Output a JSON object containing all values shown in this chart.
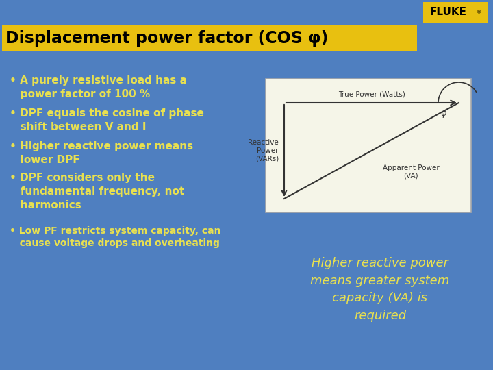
{
  "bg_color": "#4f7fc0",
  "title_text": "Displacement power factor (COS φ)",
  "title_bg": "#e8c010",
  "title_color": "#000000",
  "title_fontsize": 17,
  "fluke_bg": "#e8c010",
  "fluke_text": "FLUKE",
  "fluke_color": "#000000",
  "bullet_color": "#e8e050",
  "bullets": [
    "• A purely resistive load has a\n   power factor of 100 %",
    "• DPF equals the cosine of phase\n   shift between V and I",
    "• Higher reactive power means\n   lower DPF",
    "• DPF considers only the\n   fundamental frequency, not\n   harmonics",
    "• Low PF restricts system capacity, can\n   cause voltage drops and overheating"
  ],
  "bullet_fontsizes": [
    11,
    11,
    11,
    11,
    10
  ],
  "italic_text": "Higher reactive power\nmeans greater system\ncapacity (VA) is\nrequired",
  "italic_color": "#e8e050",
  "italic_fontsize": 13,
  "diagram_bg": "#f5f5e8",
  "diagram_border": "#aaaaaa"
}
